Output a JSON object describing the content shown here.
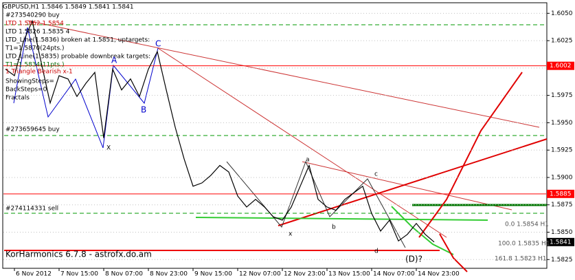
{
  "chart_data": {
    "type": "line",
    "title": "GBPUSD,H1  1.5846 1.5849 1.5841 1.5841",
    "categories": [
      null,
      "6 Nov 2012",
      null,
      null,
      null,
      null,
      "7 Nov 15:00",
      null,
      null,
      null,
      null,
      "8 Nov 07:00",
      null,
      null,
      null,
      null,
      "8 Nov 23:00",
      null,
      null,
      null,
      null,
      "9 Nov 15:00",
      null,
      null,
      null,
      null,
      "12 Nov 07:00",
      null,
      null,
      null,
      null,
      "12 Nov 23:00",
      null,
      null,
      null,
      null,
      "13 Nov 15:00",
      null,
      null,
      null,
      null,
      "14 Nov 07:00",
      null,
      null,
      null,
      null,
      "14 Nov 23:00",
      null,
      null,
      null,
      null,
      null,
      null,
      null,
      null,
      null,
      null,
      null,
      null,
      null,
      null
    ],
    "series": [
      {
        "name": "GBPUSD,H1",
        "color": "#000000",
        "values": [
          1.5999,
          1.5993,
          1.6024,
          1.6043,
          1.6005,
          1.5968,
          1.5993,
          1.599,
          1.5974,
          1.5986,
          1.5996,
          1.5936,
          1.5999,
          1.598,
          1.599,
          1.5974,
          1.5999,
          1.6015,
          1.598,
          1.5946,
          1.5917,
          1.5892,
          1.5895,
          1.5902,
          1.5911,
          1.5905,
          1.5883,
          1.5873,
          1.588,
          1.5873,
          1.5864,
          1.5861,
          1.5873,
          1.5892,
          1.5911,
          1.588,
          1.5873,
          1.587,
          1.588,
          1.5886,
          1.5892,
          1.5867,
          1.5851,
          1.5861,
          1.5842,
          1.5848,
          1.5858,
          1.5848,
          1.5841,
          null,
          null,
          null,
          null,
          null,
          null,
          null,
          null,
          null,
          null,
          null,
          null
        ]
      }
    ],
    "ylim": [
      1.5817,
      1.6059
    ],
    "yticks": [
      {
        "value": 1.605,
        "label": "1.6050"
      },
      {
        "value": 1.6025,
        "label": "1.6025"
      },
      {
        "value": 1.6,
        "label": "1.6000"
      },
      {
        "value": 1.5975,
        "label": "1.5975"
      },
      {
        "value": 1.595,
        "label": "1.5950"
      },
      {
        "value": 1.5925,
        "label": "1.5925"
      },
      {
        "value": 1.59,
        "label": "1.5900"
      },
      {
        "value": 1.5875,
        "label": "1.5875"
      },
      {
        "value": 1.585,
        "label": "1.5850"
      },
      {
        "value": 1.5825,
        "label": "1.5825"
      }
    ],
    "levels": [
      {
        "value": 1.6002,
        "color": "#ff0000"
      },
      {
        "value": 1.5885,
        "color": "#ff0000"
      },
      {
        "value": 1.5841,
        "color": "#000000"
      }
    ],
    "annotations": [
      "#273540290 buy",
      "LTD 1.5862 1.5854",
      "LTD 1.5826 1.5835 4",
      "LTD_Line(1.5836) broken at 1.5851, uptargets:",
      "T1=1.5870(24pts.)",
      "LTD_Line(1.5835) probable downbreak targets:",
      "T1=1.5834(11pts.)",
      "1 Triangle Bearish x-1",
      "ShowingSteps=",
      "BackSteps=0",
      "Fractals",
      "#273659645 buy",
      "#274114331 sell",
      "KorHarmonics 6.7.8 - astrofx.do.am",
      "A",
      "B",
      "C",
      "X",
      "a",
      "b",
      "c",
      "x",
      "d",
      "(D)?",
      "0.0 1.5854 H1",
      "100.0 1.5835 H1",
      "161.8 1.5823 H1"
    ]
  }
}
